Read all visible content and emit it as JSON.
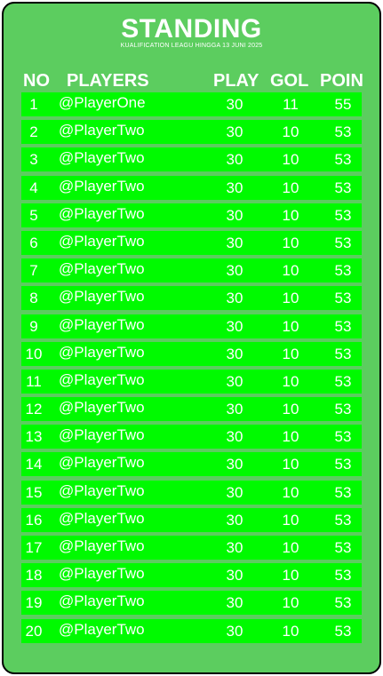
{
  "title": "STANDING",
  "subtitle": "KUALIFICATION LEAGU HINGGA 13 JUNI 2025",
  "headers": {
    "no": "NO",
    "players": "PLAYERS",
    "play": "PLAY",
    "gol": "GOL",
    "poin": "POIN"
  },
  "rows": [
    {
      "no": "1",
      "player": "@PlayerOne",
      "play": "30",
      "gol": "11",
      "poin": "55"
    },
    {
      "no": "2",
      "player": "@PlayerTwo",
      "play": "30",
      "gol": "10",
      "poin": "53"
    },
    {
      "no": "3",
      "player": "@PlayerTwo",
      "play": "30",
      "gol": "10",
      "poin": "53"
    },
    {
      "no": "4",
      "player": "@PlayerTwo",
      "play": "30",
      "gol": "10",
      "poin": "53"
    },
    {
      "no": "5",
      "player": "@PlayerTwo",
      "play": "30",
      "gol": "10",
      "poin": "53"
    },
    {
      "no": "6",
      "player": "@PlayerTwo",
      "play": "30",
      "gol": "10",
      "poin": "53"
    },
    {
      "no": "7",
      "player": "@PlayerTwo",
      "play": "30",
      "gol": "10",
      "poin": "53"
    },
    {
      "no": "8",
      "player": "@PlayerTwo",
      "play": "30",
      "gol": "10",
      "poin": "53"
    },
    {
      "no": "9",
      "player": "@PlayerTwo",
      "play": "30",
      "gol": "10",
      "poin": "53"
    },
    {
      "no": "10",
      "player": "@PlayerTwo",
      "play": "30",
      "gol": "10",
      "poin": "53"
    },
    {
      "no": "11",
      "player": "@PlayerTwo",
      "play": "30",
      "gol": "10",
      "poin": "53"
    },
    {
      "no": "12",
      "player": "@PlayerTwo",
      "play": "30",
      "gol": "10",
      "poin": "53"
    },
    {
      "no": "13",
      "player": "@PlayerTwo",
      "play": "30",
      "gol": "10",
      "poin": "53"
    },
    {
      "no": "14",
      "player": "@PlayerTwo",
      "play": "30",
      "gol": "10",
      "poin": "53"
    },
    {
      "no": "15",
      "player": "@PlayerTwo",
      "play": "30",
      "gol": "10",
      "poin": "53"
    },
    {
      "no": "16",
      "player": "@PlayerTwo",
      "play": "30",
      "gol": "10",
      "poin": "53"
    },
    {
      "no": "17",
      "player": "@PlayerTwo",
      "play": "30",
      "gol": "10",
      "poin": "53"
    },
    {
      "no": "18",
      "player": "@PlayerTwo",
      "play": "30",
      "gol": "10",
      "poin": "53"
    },
    {
      "no": "19",
      "player": "@PlayerTwo",
      "play": "30",
      "gol": "10",
      "poin": "53"
    },
    {
      "no": "20",
      "player": "@PlayerTwo",
      "play": "30",
      "gol": "10",
      "poin": "53"
    }
  ],
  "colors": {
    "card": "#5ccd5f",
    "row": "#00fa00",
    "text": "#ffffff",
    "border": "#000000"
  }
}
